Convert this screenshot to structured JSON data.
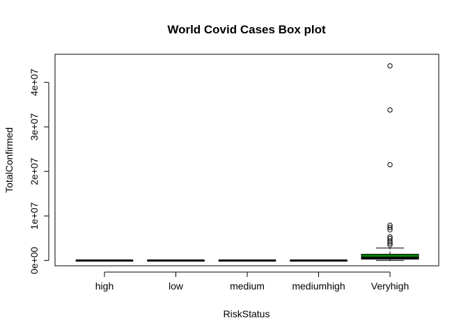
{
  "chart_data": {
    "type": "box",
    "title": "World Covid Cases Box plot",
    "xlabel": "RiskStatus",
    "ylabel": "TotalConfirmed",
    "ylim": [
      -1200000,
      46300000
    ],
    "y_ticks": [
      {
        "value": 0,
        "label": "0e+00"
      },
      {
        "value": 10000000,
        "label": "1e+07"
      },
      {
        "value": 20000000,
        "label": "2e+07"
      },
      {
        "value": 30000000,
        "label": "3e+07"
      },
      {
        "value": 40000000,
        "label": "4e+07"
      }
    ],
    "categories": [
      "high",
      "low",
      "medium",
      "mediumhigh",
      "Veryhigh"
    ],
    "boxes": [
      {
        "category": "high",
        "min": 0,
        "q1": 0,
        "median": 0,
        "q3": 0,
        "max": 0,
        "outliers": []
      },
      {
        "category": "low",
        "min": 0,
        "q1": 0,
        "median": 0,
        "q3": 0,
        "max": 0,
        "outliers": []
      },
      {
        "category": "medium",
        "min": 0,
        "q1": 0,
        "median": 0,
        "q3": 0,
        "max": 0,
        "outliers": []
      },
      {
        "category": "mediumhigh",
        "min": 0,
        "q1": 0,
        "median": 0,
        "q3": 0,
        "max": 0,
        "outliers": []
      },
      {
        "category": "Veryhigh",
        "min": 0,
        "q1": 300000,
        "median": 600000,
        "q3": 1400000,
        "max": 2800000,
        "outliers": [
          3500000,
          3900000,
          4300000,
          4900000,
          5300000,
          6900000,
          7400000,
          7900000,
          21500000,
          33800000,
          43700000
        ]
      }
    ],
    "box_color": "#008000",
    "grid": false,
    "legend": "none"
  }
}
